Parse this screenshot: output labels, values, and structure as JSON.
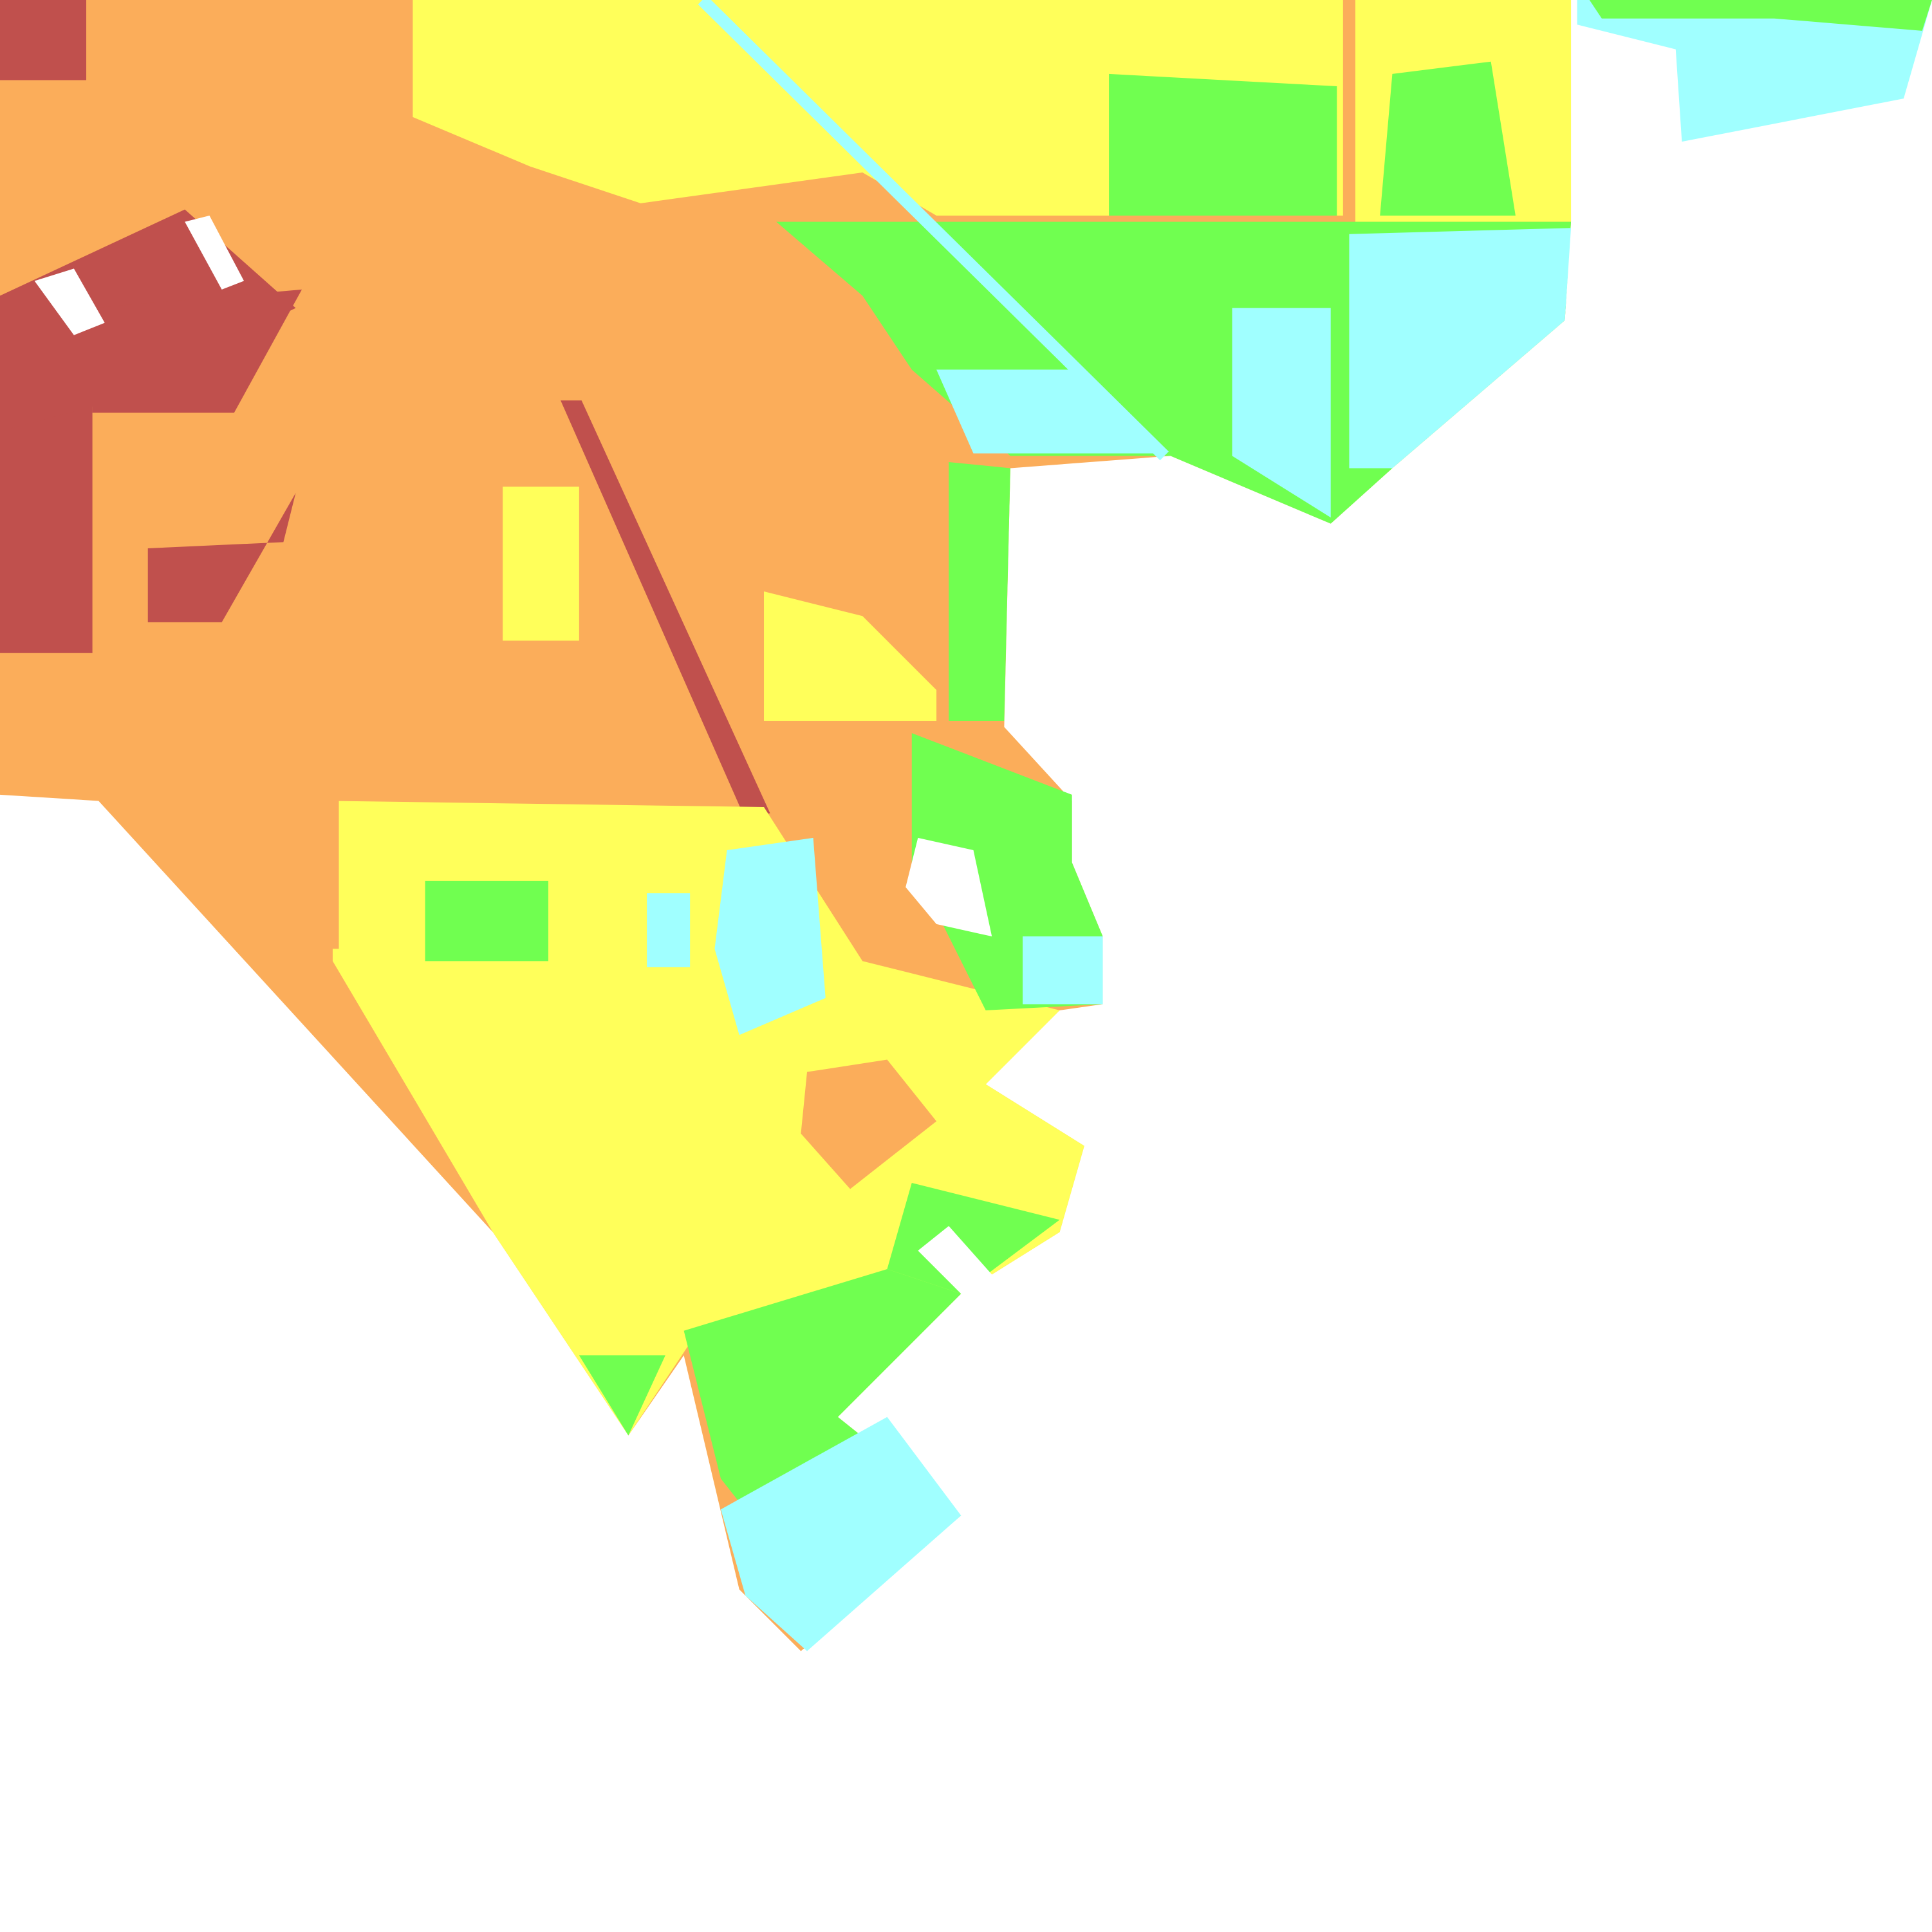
{
  "map": {
    "background": "#ffffff",
    "class_colors": {
      "dark_red": "#c0504d",
      "orange": "#fbad5a",
      "yellow": "#ffff5a",
      "green": "#70ff50",
      "cyan": "#a0ffff"
    }
  }
}
